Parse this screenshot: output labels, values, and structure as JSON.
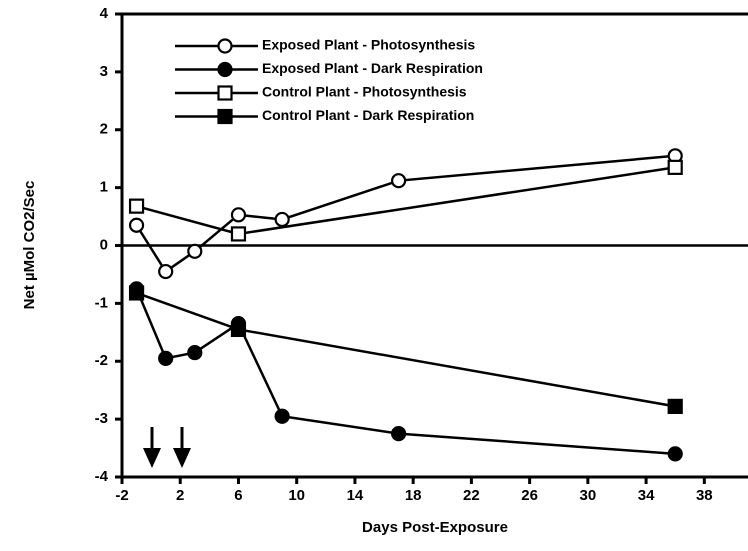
{
  "chart_data": {
    "type": "line",
    "xlabel": "Days Post-Exposure",
    "ylabel": "Net µMol CO2/Sec",
    "xlim": [
      -2,
      41
    ],
    "ylim": [
      -4,
      4
    ],
    "xticks": [
      -2,
      2,
      6,
      10,
      14,
      18,
      22,
      26,
      30,
      34,
      38
    ],
    "yticks": [
      4,
      3,
      2,
      1,
      0,
      -1,
      -2,
      -3,
      -4
    ],
    "zero_line": true,
    "legend": "upper left",
    "series": [
      {
        "name": "Exposed Plant - Photosynthesis",
        "color": "#000000",
        "marker": "open-circle",
        "x": [
          -1,
          1,
          3,
          6,
          9,
          17,
          36
        ],
        "values": [
          0.35,
          -0.45,
          -0.1,
          0.53,
          0.45,
          1.12,
          1.55
        ]
      },
      {
        "name": "Exposed Plant - Dark Respiration",
        "color": "#000000",
        "marker": "filled-circle",
        "x": [
          -1,
          1,
          3,
          6,
          9,
          17,
          36
        ],
        "values": [
          -0.75,
          -1.95,
          -1.85,
          -1.35,
          -2.95,
          -3.25,
          -3.6
        ]
      },
      {
        "name": "Control Plant - Photosynthesis",
        "color": "#000000",
        "marker": "open-square",
        "x": [
          -1,
          6,
          36
        ],
        "values": [
          0.68,
          0.2,
          1.35
        ]
      },
      {
        "name": "Control Plant - Dark Respiration",
        "color": "#000000",
        "marker": "filled-square",
        "x": [
          -1,
          6,
          36
        ],
        "values": [
          -0.82,
          -1.45,
          -2.78
        ]
      }
    ]
  }
}
